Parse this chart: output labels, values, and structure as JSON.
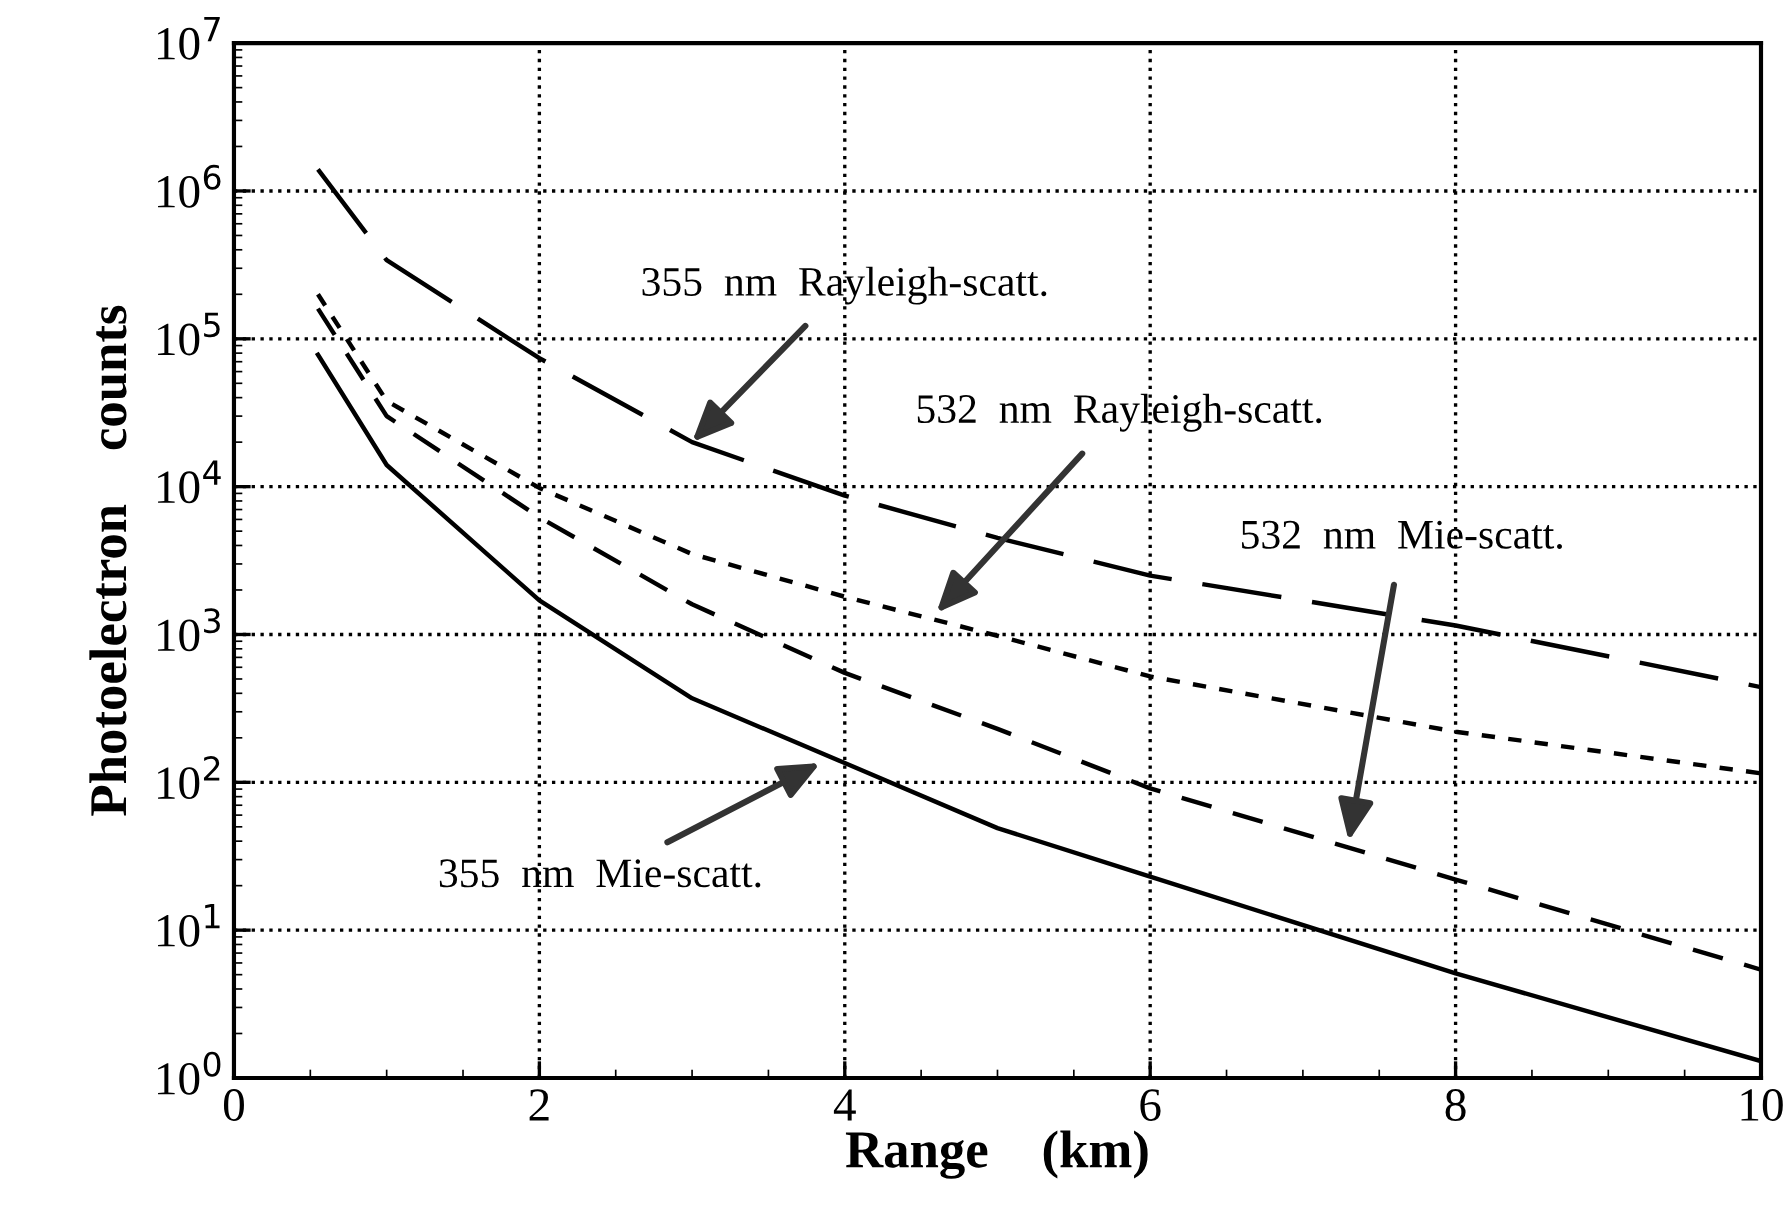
{
  "chart_data": {
    "type": "line",
    "xlabel": "Range    (km)",
    "ylabel": "Photoelectron    counts",
    "log": "y",
    "grid": true,
    "marker": "none",
    "xlim": [
      0,
      10
    ],
    "xticks": [
      0,
      2,
      4,
      6,
      8,
      10
    ],
    "ylim": [
      1,
      10000000
    ],
    "yticks": [
      {
        "value": 1,
        "label": "10$^{0}$"
      },
      {
        "value": 10,
        "label": "10$^{1}$"
      },
      {
        "value": 100,
        "label": "10$^{2}$"
      },
      {
        "value": 1000,
        "label": "10$^{3}$"
      },
      {
        "value": 10000,
        "label": "10$^{4}$"
      },
      {
        "value": 100000,
        "label": "10$^{5}$"
      },
      {
        "value": 1000000,
        "label": "10$^{6}$"
      },
      {
        "value": 10000000,
        "label": "10$^{7}$"
      }
    ],
    "x": [
      0.55,
      1,
      2,
      3,
      4,
      5,
      6,
      8,
      10
    ],
    "series": [
      {
        "color": "#000000",
        "line_style": "long_dash",
        "values": [
          1400000,
          340000,
          74000,
          20000,
          8700,
          4500,
          2500,
          1150,
          440
        ]
      },
      {
        "color": "#000000",
        "line_style": "dotted",
        "values": [
          200000,
          38000,
          9800,
          3500,
          1800,
          980,
          520,
          220,
          115
        ]
      },
      {
        "color": "#000000",
        "line_style": "dashed",
        "values": [
          160000,
          30000,
          6200,
          1600,
          550,
          230,
          91,
          22,
          5.4
        ]
      },
      {
        "color": "#000000",
        "line_style": "solid",
        "values": [
          78000,
          14000,
          1700,
          370,
          135,
          49,
          23,
          5.1,
          1.3
        ]
      }
    ],
    "annotations": [
      {
        "text": "355  nm  Rayleigh-scatt.",
        "x": 3.0,
        "y": 20000
      },
      {
        "text": "532  nm  Rayleigh-scatt.",
        "x": 4.6,
        "y": 1400
      },
      {
        "text": "532  nm  Mie-scatt.",
        "x": 7.3,
        "y": 40
      },
      {
        "text": "355  nm  Mie-scatt.",
        "x": 3.84,
        "y": 135
      }
    ]
  }
}
